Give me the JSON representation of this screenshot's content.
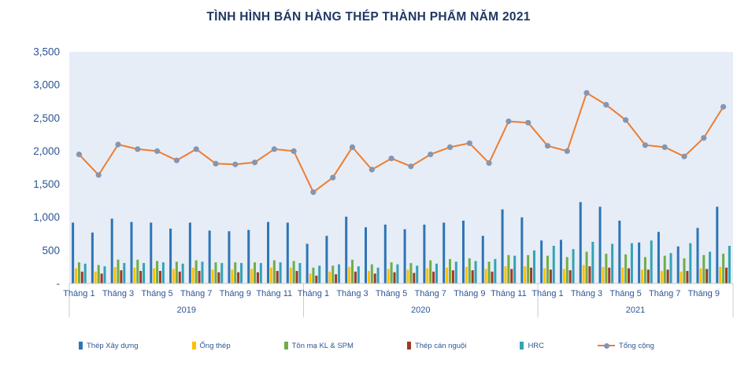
{
  "title": "TÌNH HÌNH BÁN HÀNG THÉP THÀNH PHẨM NĂM 2021",
  "colors": {
    "title_text": "#1f3864",
    "axis_text": "#2e5597",
    "plot_background": "#e6edf7",
    "axis_line": "#c9cdd2",
    "year_separator": "#c4cdd9",
    "page_background": "#ffffff"
  },
  "chart_data": {
    "type": "bar",
    "subtype": "grouped-bars-with-total-line",
    "title": "TÌNH HÌNH BÁN HÀNG THÉP THÀNH PHẨM NĂM 2021",
    "xlabel": "",
    "ylabel": "",
    "ylim": [
      0,
      3500
    ],
    "grid": false,
    "legend_position": "bottom",
    "plot_bg": "#e6edf7",
    "y_ticks": [
      {
        "v": 0,
        "label": "-"
      },
      {
        "v": 500,
        "label": "500"
      },
      {
        "v": 1000,
        "label": "1,000"
      },
      {
        "v": 1500,
        "label": "1,500"
      },
      {
        "v": 2000,
        "label": "2,000"
      },
      {
        "v": 2500,
        "label": "2,500"
      },
      {
        "v": 3000,
        "label": "3,000"
      },
      {
        "v": 3500,
        "label": "3,500"
      }
    ],
    "categories": [
      "Tháng 1",
      "Tháng 2",
      "Tháng 3",
      "Tháng 4",
      "Tháng 5",
      "Tháng 6",
      "Tháng 7",
      "Tháng 8",
      "Tháng 9",
      "Tháng 10",
      "Tháng 11",
      "Tháng 12",
      "Tháng 1",
      "Tháng 2",
      "Tháng 3",
      "Tháng 4",
      "Tháng 5",
      "Tháng 6",
      "Tháng 7",
      "Tháng 8",
      "Tháng 9",
      "Tháng 10",
      "Tháng 11",
      "Tháng 12",
      "Tháng 1",
      "Tháng 2",
      "Tháng 3",
      "Tháng 4",
      "Tháng 5",
      "Tháng 6",
      "Tháng 7",
      "Tháng 8",
      "Tháng 9",
      "Tháng 10"
    ],
    "tick_indices": [
      0,
      2,
      4,
      6,
      8,
      10,
      12,
      14,
      16,
      18,
      20,
      22,
      24,
      26,
      28,
      30,
      32
    ],
    "year_groups": [
      {
        "label": "2019",
        "start": 0,
        "count": 12
      },
      {
        "label": "2020",
        "start": 12,
        "count": 12
      },
      {
        "label": "2021",
        "start": 24,
        "count": 10
      }
    ],
    "series": [
      {
        "name": "Thép Xây dựng",
        "color": "#2e75b6",
        "values": [
          920,
          770,
          980,
          930,
          920,
          830,
          920,
          800,
          790,
          810,
          930,
          920,
          600,
          720,
          1010,
          850,
          890,
          820,
          890,
          920,
          950,
          720,
          1120,
          1000,
          650,
          660,
          1230,
          1160,
          950,
          620,
          780,
          560,
          840,
          1160
        ]
      },
      {
        "name": "Ống thép",
        "color": "#ffc000",
        "values": [
          230,
          180,
          250,
          240,
          230,
          220,
          240,
          210,
          210,
          220,
          240,
          240,
          150,
          180,
          250,
          190,
          220,
          210,
          230,
          240,
          250,
          220,
          260,
          260,
          230,
          220,
          280,
          250,
          240,
          210,
          190,
          180,
          230,
          250
        ]
      },
      {
        "name": "Tôn mạ KL & SPM",
        "color": "#70ad47",
        "values": [
          320,
          280,
          360,
          360,
          340,
          330,
          350,
          320,
          320,
          320,
          350,
          340,
          240,
          270,
          360,
          290,
          320,
          310,
          350,
          370,
          380,
          330,
          430,
          430,
          420,
          400,
          480,
          450,
          440,
          400,
          420,
          380,
          430,
          450
        ]
      },
      {
        "name": "Thép cán nguội",
        "color": "#9e3b25",
        "values": [
          180,
          150,
          200,
          190,
          190,
          180,
          190,
          170,
          170,
          170,
          190,
          190,
          120,
          140,
          180,
          150,
          170,
          160,
          180,
          200,
          200,
          180,
          220,
          240,
          210,
          200,
          260,
          240,
          230,
          210,
          210,
          190,
          220,
          240
        ]
      },
      {
        "name": "HRC",
        "color": "#35a2b5",
        "values": [
          300,
          260,
          310,
          310,
          320,
          300,
          330,
          310,
          310,
          310,
          320,
          310,
          270,
          290,
          260,
          240,
          290,
          270,
          300,
          330,
          340,
          370,
          420,
          500,
          570,
          520,
          630,
          600,
          610,
          650,
          460,
          610,
          480,
          570
        ]
      }
    ],
    "line_series": {
      "name": "Tổng cộng",
      "color": "#ed7d31",
      "marker_color": "#8496b0",
      "values": [
        1950,
        1640,
        2100,
        2030,
        2000,
        1860,
        2030,
        1810,
        1800,
        1830,
        2030,
        2000,
        1380,
        1600,
        2060,
        1720,
        1890,
        1770,
        1950,
        2060,
        2120,
        1820,
        2450,
        2430,
        2080,
        2000,
        2880,
        2700,
        2470,
        2090,
        2060,
        1920,
        2200,
        2670
      ]
    }
  }
}
